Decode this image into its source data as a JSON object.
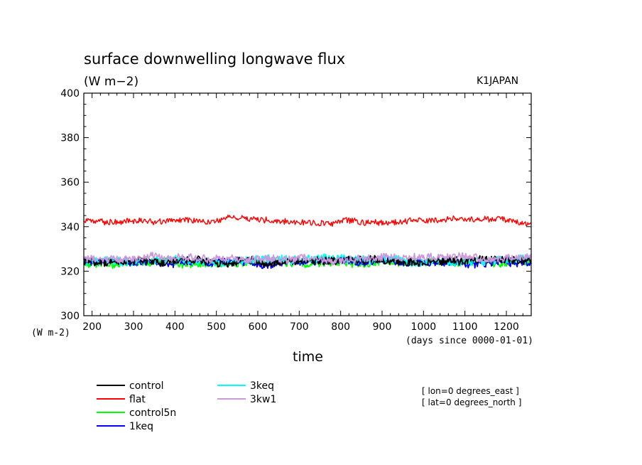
{
  "chart_data": {
    "type": "line",
    "title": "surface downwelling longwave flux",
    "units": "(W m−2)",
    "source_label": "K1JAPAN",
    "ylabel": "(W m-2)",
    "xlabel": "time",
    "x_units": "(days since 0000-01-01)",
    "xlim": [
      180,
      1260
    ],
    "ylim": [
      300,
      400
    ],
    "x_ticks": [
      200,
      300,
      400,
      500,
      600,
      700,
      800,
      900,
      1000,
      1100,
      1200
    ],
    "y_ticks": [
      300,
      320,
      340,
      360,
      380,
      400
    ],
    "grid": false,
    "legend_placement": "bottom-left",
    "series": [
      {
        "name": "control",
        "color": "#000000",
        "mean": 324.5,
        "amplitude": 2.2
      },
      {
        "name": "flat",
        "color": "#ff0000",
        "mean": 342.8,
        "amplitude": 1.6
      },
      {
        "name": "control5n",
        "color": "#00ff00",
        "mean": 323.5,
        "amplitude": 2.0
      },
      {
        "name": "1keq",
        "color": "#0000ff",
        "mean": 324.0,
        "amplitude": 2.1
      },
      {
        "name": "3keq",
        "color": "#00ffff",
        "mean": 324.5,
        "amplitude": 2.2
      },
      {
        "name": "3kw1",
        "color": "#cc99dd",
        "mean": 325.5,
        "amplitude": 2.0
      }
    ],
    "annotations": [
      "[ lon=0 degrees_east ]",
      "[ lat=0 degrees_north ]"
    ]
  }
}
